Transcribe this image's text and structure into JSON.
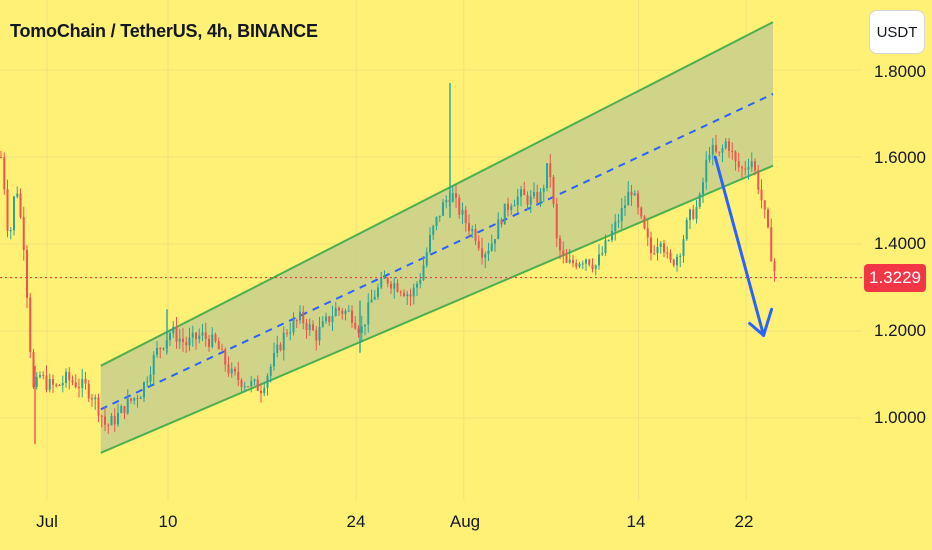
{
  "header": {
    "title": "TomoChain / TetherUS, 4h, BINANCE"
  },
  "currency_button": "USDT",
  "colors": {
    "background": "#fff176",
    "up_candle": "#26a69a",
    "down_candle": "#ef5350",
    "channel_line": "#4caf50",
    "channel_fill": "#c8cf8c",
    "midline": "#2962ff",
    "arrow": "#2962ff",
    "last_price_line": "#f23645"
  },
  "chart_data": {
    "type": "candlestick",
    "symbol": "TomoChain / TetherUS",
    "timeframe": "4h",
    "exchange": "BINANCE",
    "quote_currency": "USDT",
    "last_price": "1.3229",
    "y_ticks": [
      "1.8000",
      "1.6000",
      "1.4000",
      "1.2000",
      "1.0000"
    ],
    "x_ticks": [
      "Jul",
      "10",
      "24",
      "Aug",
      "14",
      "22"
    ],
    "ylim": [
      0.93,
      1.92
    ],
    "price_path": [
      [
        0,
        1.6
      ],
      [
        4,
        1.52
      ],
      [
        8,
        1.4
      ],
      [
        12,
        1.48
      ],
      [
        15,
        1.55
      ],
      [
        20,
        1.45
      ],
      [
        24,
        1.38
      ],
      [
        28,
        1.2
      ],
      [
        33,
        1.05
      ],
      [
        38,
        1.1
      ],
      [
        45,
        1.08
      ],
      [
        55,
        1.07
      ],
      [
        65,
        1.09
      ],
      [
        75,
        1.08
      ],
      [
        85,
        1.07
      ],
      [
        92,
        1.05
      ],
      [
        100,
        1.01
      ],
      [
        105,
        0.98
      ],
      [
        115,
        1.0
      ],
      [
        125,
        1.03
      ],
      [
        140,
        1.06
      ],
      [
        155,
        1.15
      ],
      [
        170,
        1.2
      ],
      [
        185,
        1.17
      ],
      [
        200,
        1.19
      ],
      [
        215,
        1.17
      ],
      [
        230,
        1.1
      ],
      [
        245,
        1.08
      ],
      [
        260,
        1.07
      ],
      [
        270,
        1.12
      ],
      [
        285,
        1.2
      ],
      [
        300,
        1.23
      ],
      [
        315,
        1.19
      ],
      [
        325,
        1.22
      ],
      [
        335,
        1.25
      ],
      [
        350,
        1.24
      ],
      [
        360,
        1.2
      ],
      [
        372,
        1.28
      ],
      [
        385,
        1.32
      ],
      [
        400,
        1.3
      ],
      [
        410,
        1.28
      ],
      [
        420,
        1.33
      ],
      [
        430,
        1.42
      ],
      [
        440,
        1.48
      ],
      [
        450,
        1.52
      ],
      [
        455,
        1.49
      ],
      [
        465,
        1.45
      ],
      [
        475,
        1.42
      ],
      [
        482,
        1.38
      ],
      [
        490,
        1.4
      ],
      [
        500,
        1.46
      ],
      [
        510,
        1.5
      ],
      [
        520,
        1.51
      ],
      [
        530,
        1.5
      ],
      [
        540,
        1.51
      ],
      [
        548,
        1.59
      ],
      [
        556,
        1.4
      ],
      [
        565,
        1.35
      ],
      [
        575,
        1.36
      ],
      [
        585,
        1.37
      ],
      [
        595,
        1.35
      ],
      [
        610,
        1.42
      ],
      [
        622,
        1.48
      ],
      [
        630,
        1.53
      ],
      [
        640,
        1.45
      ],
      [
        650,
        1.38
      ],
      [
        660,
        1.42
      ],
      [
        668,
        1.35
      ],
      [
        678,
        1.38
      ],
      [
        688,
        1.46
      ],
      [
        698,
        1.49
      ],
      [
        708,
        1.62
      ],
      [
        718,
        1.6
      ],
      [
        726,
        1.64
      ],
      [
        735,
        1.58
      ],
      [
        742,
        1.57
      ],
      [
        750,
        1.6
      ],
      [
        758,
        1.53
      ],
      [
        765,
        1.45
      ],
      [
        770,
        1.38
      ],
      [
        775,
        1.32
      ]
    ],
    "up_channel": {
      "start_date": "Jul 5",
      "end_date": "Aug 24",
      "lower_line": [
        0.92,
        1.58
      ],
      "upper_line": [
        1.12,
        1.91
      ],
      "midline_style": "dashed"
    },
    "projection_arrow": {
      "from": 1.6,
      "to": 1.19
    },
    "grid": true
  }
}
